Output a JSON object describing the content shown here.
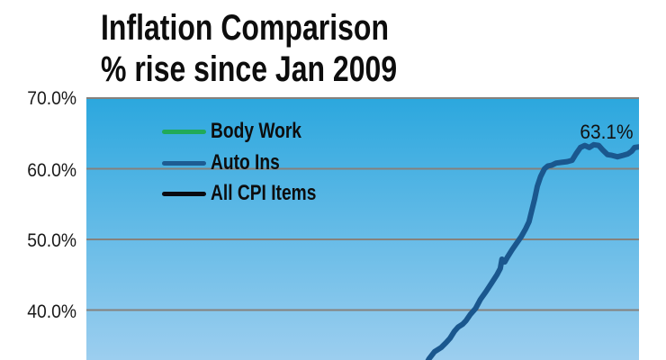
{
  "title": {
    "line1": "Inflation Comparison",
    "line2": "% rise since Jan 2009"
  },
  "y_axis": {
    "labels": [
      "70.0%",
      "60.0%",
      "50.0%",
      "40.0%"
    ]
  },
  "legend": [
    {
      "label": "Body Work",
      "color": "#21aa59"
    },
    {
      "label": "Auto Ins",
      "color": "#1d5c92"
    },
    {
      "label": "All CPI Items",
      "color": "#0a0a10"
    }
  ],
  "annotation": {
    "label": "63.1%"
  },
  "colors": {
    "plot_bg_top": "#2ba7de",
    "plot_bg_bottom": "#9cceef",
    "gridline": "#85817c",
    "auto_ins_line": "#1a578e",
    "title_text": "#0d0d0d"
  },
  "chart_data": {
    "type": "line",
    "title": "Inflation Comparison",
    "subtitle": "% rise since Jan 2009",
    "ylabel": "% rise since Jan 2009",
    "y_ticks_visible": [
      70.0,
      60.0,
      50.0,
      40.0
    ],
    "ylim_visible": [
      32.5,
      70.0
    ],
    "grid": true,
    "legend_position": "inside top-left",
    "plot_background": "vertical blue gradient, darker at top",
    "series": [
      {
        "name": "Body Work",
        "color": "#21aa59",
        "points_visible": []
      },
      {
        "name": "Auto Ins",
        "color": "#1a578e",
        "end_label": "63.1%",
        "points_visible": [
          [
            0.614,
            32.2
          ],
          [
            0.62,
            33.1
          ],
          [
            0.63,
            34.1
          ],
          [
            0.642,
            34.7
          ],
          [
            0.651,
            35.4
          ],
          [
            0.658,
            36.0
          ],
          [
            0.666,
            37.0
          ],
          [
            0.673,
            37.6
          ],
          [
            0.681,
            38.0
          ],
          [
            0.687,
            38.5
          ],
          [
            0.695,
            39.4
          ],
          [
            0.704,
            40.2
          ],
          [
            0.713,
            41.5
          ],
          [
            0.723,
            42.6
          ],
          [
            0.733,
            43.8
          ],
          [
            0.743,
            45.0
          ],
          [
            0.749,
            45.9
          ],
          [
            0.752,
            47.2
          ],
          [
            0.757,
            46.8
          ],
          [
            0.762,
            47.5
          ],
          [
            0.77,
            48.5
          ],
          [
            0.778,
            49.4
          ],
          [
            0.787,
            50.4
          ],
          [
            0.795,
            51.5
          ],
          [
            0.801,
            52.5
          ],
          [
            0.806,
            54.1
          ],
          [
            0.811,
            55.7
          ],
          [
            0.816,
            57.5
          ],
          [
            0.822,
            58.9
          ],
          [
            0.829,
            60.0
          ],
          [
            0.835,
            60.4
          ],
          [
            0.842,
            60.5
          ],
          [
            0.85,
            60.8
          ],
          [
            0.86,
            60.9
          ],
          [
            0.87,
            61.0
          ],
          [
            0.879,
            61.2
          ],
          [
            0.886,
            62.1
          ],
          [
            0.894,
            63.0
          ],
          [
            0.902,
            63.3
          ],
          [
            0.91,
            63.0
          ],
          [
            0.918,
            63.4
          ],
          [
            0.927,
            63.3
          ],
          [
            0.935,
            62.6
          ],
          [
            0.943,
            62.0
          ],
          [
            0.951,
            61.9
          ],
          [
            0.961,
            61.7
          ],
          [
            0.971,
            61.9
          ],
          [
            0.98,
            62.1
          ],
          [
            0.987,
            62.5
          ],
          [
            0.992,
            63.0
          ],
          [
            1.0,
            63.1
          ]
        ]
      },
      {
        "name": "All CPI Items",
        "color": "#0a0a10",
        "points_visible": []
      }
    ],
    "notes": "x axis tick labels and lower portion of plot are cut off at the bottom edge of the screenshot; only the Auto Ins series is visible in the cropped plot region"
  }
}
